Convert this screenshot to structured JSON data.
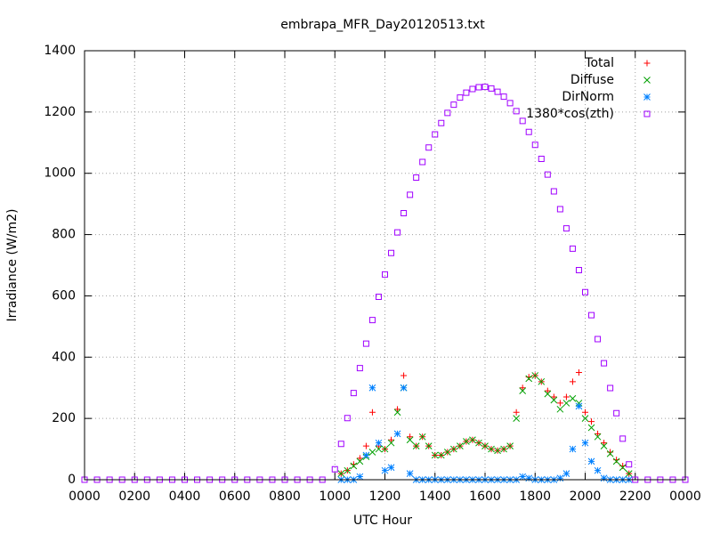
{
  "chart_data": {
    "type": "scatter",
    "title": "embrapa_MFR_Day20120513.txt",
    "xlabel": "UTC Hour",
    "ylabel": "Irradiance (W/m2)",
    "xlim": [
      0,
      24
    ],
    "ylim": [
      0,
      1400
    ],
    "xticks": [
      {
        "value": 0,
        "label": "0000"
      },
      {
        "value": 2,
        "label": "0200"
      },
      {
        "value": 4,
        "label": "0400"
      },
      {
        "value": 6,
        "label": "0600"
      },
      {
        "value": 8,
        "label": "0800"
      },
      {
        "value": 10,
        "label": "1000"
      },
      {
        "value": 12,
        "label": "1200"
      },
      {
        "value": 14,
        "label": "1400"
      },
      {
        "value": 16,
        "label": "1600"
      },
      {
        "value": 18,
        "label": "1800"
      },
      {
        "value": 20,
        "label": "2000"
      },
      {
        "value": 22,
        "label": "2200"
      },
      {
        "value": 24,
        "label": "0000"
      }
    ],
    "yticks": [
      0,
      200,
      400,
      600,
      800,
      1000,
      1200,
      1400
    ],
    "grid": true,
    "legend": "top-right",
    "series": [
      {
        "name": "Total",
        "color": "#ff0000",
        "marker": "plus",
        "x": [
          10.25,
          10.5,
          10.75,
          11,
          11.25,
          11.5,
          11.75,
          12,
          12.25,
          12.5,
          12.75,
          13,
          13.25,
          13.5,
          13.75,
          14,
          14.25,
          14.5,
          14.75,
          15,
          15.25,
          15.5,
          15.75,
          16,
          16.25,
          16.5,
          16.75,
          17,
          17.25,
          17.5,
          17.75,
          18,
          18.25,
          18.5,
          18.75,
          19,
          19.25,
          19.5,
          19.75,
          20,
          20.25,
          20.5,
          20.75,
          21,
          21.25,
          21.5,
          21.75
        ],
        "values": [
          20,
          30,
          50,
          70,
          110,
          220,
          110,
          100,
          130,
          230,
          340,
          140,
          110,
          140,
          110,
          80,
          80,
          90,
          100,
          110,
          125,
          130,
          120,
          110,
          100,
          95,
          100,
          110,
          220,
          300,
          335,
          340,
          320,
          290,
          270,
          250,
          270,
          320,
          350,
          220,
          190,
          150,
          120,
          90,
          65,
          45,
          20
        ]
      },
      {
        "name": "Diffuse",
        "color": "#00a000",
        "marker": "cross",
        "x": [
          10.25,
          10.5,
          10.75,
          11,
          11.25,
          11.5,
          11.75,
          12,
          12.25,
          12.5,
          12.75,
          13,
          13.25,
          13.5,
          13.75,
          14,
          14.25,
          14.5,
          14.75,
          15,
          15.25,
          15.5,
          15.75,
          16,
          16.25,
          16.5,
          16.75,
          17,
          17.25,
          17.5,
          17.75,
          18,
          18.25,
          18.5,
          18.75,
          19,
          19.25,
          19.5,
          19.75,
          20,
          20.25,
          20.5,
          20.75,
          21,
          21.25,
          21.5,
          21.75
        ],
        "values": [
          20,
          30,
          45,
          60,
          75,
          90,
          100,
          100,
          120,
          220,
          300,
          130,
          110,
          140,
          110,
          80,
          80,
          90,
          100,
          110,
          125,
          130,
          120,
          110,
          100,
          95,
          100,
          110,
          200,
          290,
          330,
          340,
          320,
          280,
          260,
          230,
          250,
          265,
          250,
          200,
          170,
          140,
          110,
          85,
          60,
          40,
          20
        ]
      },
      {
        "name": "DirNorm",
        "color": "#0080ff",
        "marker": "star",
        "x": [
          10.25,
          10.5,
          10.75,
          11,
          11.25,
          11.5,
          11.75,
          12,
          12.25,
          12.5,
          12.75,
          13,
          13.25,
          13.5,
          13.75,
          14,
          14.25,
          14.5,
          14.75,
          15,
          15.25,
          15.5,
          15.75,
          16,
          16.25,
          16.5,
          16.75,
          17,
          17.25,
          17.5,
          17.75,
          18,
          18.25,
          18.5,
          18.75,
          19,
          19.25,
          19.5,
          19.75,
          20,
          20.25,
          20.5,
          20.75,
          21,
          21.25,
          21.5,
          21.75
        ],
        "values": [
          0,
          0,
          0,
          10,
          80,
          300,
          120,
          30,
          40,
          150,
          300,
          20,
          0,
          0,
          0,
          0,
          0,
          0,
          0,
          0,
          0,
          0,
          0,
          0,
          0,
          0,
          0,
          0,
          0,
          10,
          5,
          0,
          0,
          0,
          0,
          5,
          20,
          100,
          240,
          120,
          60,
          30,
          5,
          0,
          0,
          0,
          0
        ]
      },
      {
        "name": "1380*cos(zth)",
        "color": "#a000ff",
        "marker": "square",
        "x": [
          0,
          0.5,
          1,
          1.5,
          2,
          2.5,
          3,
          3.5,
          4,
          4.5,
          5,
          5.5,
          6,
          6.5,
          7,
          7.5,
          8,
          8.5,
          9,
          9.5,
          10,
          10.25,
          10.5,
          10.75,
          11,
          11.25,
          11.5,
          11.75,
          12,
          12.25,
          12.5,
          12.75,
          13,
          13.25,
          13.5,
          13.75,
          14,
          14.25,
          14.5,
          14.75,
          15,
          15.25,
          15.5,
          15.75,
          16,
          16.25,
          16.5,
          16.75,
          17,
          17.25,
          17.5,
          17.75,
          18,
          18.25,
          18.5,
          18.75,
          19,
          19.25,
          19.5,
          19.75,
          20,
          20.25,
          20.5,
          20.75,
          21,
          21.25,
          21.5,
          21.75,
          22,
          22.5,
          23,
          23.5,
          24
        ],
        "values": [
          0,
          0,
          0,
          0,
          0,
          0,
          0,
          0,
          0,
          0,
          0,
          0,
          0,
          0,
          0,
          0,
          0,
          0,
          0,
          0,
          34,
          117,
          201,
          283,
          364,
          444,
          521,
          597,
          670,
          740,
          807,
          870,
          930,
          986,
          1037,
          1084,
          1127,
          1164,
          1197,
          1224,
          1247,
          1263,
          1275,
          1281,
          1282,
          1277,
          1266,
          1250,
          1229,
          1203,
          1171,
          1135,
          1093,
          1047,
          996,
          941,
          883,
          820,
          754,
          684,
          612,
          537,
          459,
          380,
          299,
          217,
          134,
          50,
          0,
          0,
          0,
          0,
          0
        ]
      }
    ]
  }
}
